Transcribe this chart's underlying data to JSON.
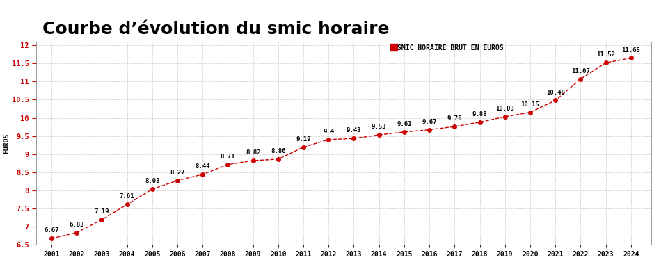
{
  "title": "Courbe d’évolution du smic horaire",
  "ylabel": "EUROS",
  "legend_label": "SMIC HORAIRE BRUT EN EUROS",
  "background_color": "#ffffff",
  "plot_background_color": "#ffffff",
  "years": [
    2001,
    2002,
    2003,
    2004,
    2005,
    2006,
    2007,
    2008,
    2009,
    2010,
    2011,
    2012,
    2013,
    2014,
    2015,
    2016,
    2017,
    2018,
    2019,
    2020,
    2021,
    2022,
    2023,
    2024
  ],
  "values": [
    6.67,
    6.83,
    7.19,
    7.61,
    8.03,
    8.27,
    8.44,
    8.71,
    8.82,
    8.86,
    9.19,
    9.4,
    9.43,
    9.53,
    9.61,
    9.67,
    9.76,
    9.88,
    10.03,
    10.15,
    10.48,
    11.07,
    11.52,
    11.65
  ],
  "ylim": [
    6.5,
    12.1
  ],
  "yticks": [
    6.5,
    7.0,
    7.5,
    8.0,
    8.5,
    9.0,
    9.5,
    10.0,
    10.5,
    11.0,
    11.5,
    12.0
  ],
  "ytick_labels": [
    "6.5",
    "7",
    "7.5",
    "8",
    "8.5",
    "9",
    "9.5",
    "10",
    "10.5",
    "11",
    "11.5",
    "12"
  ],
  "line_color": "#cc0000",
  "marker_color": "#cc0000",
  "title_fontsize": 18,
  "grid_color": "#cccccc",
  "grid_linestyle": "--",
  "border_color": "#cccccc"
}
